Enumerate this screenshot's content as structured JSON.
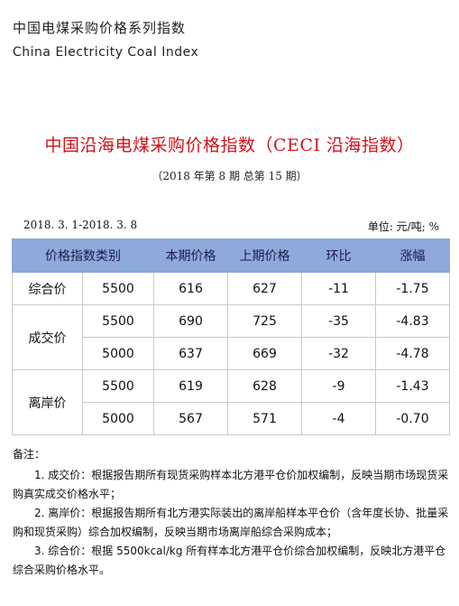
{
  "header": {
    "title_cn": "中国电煤采购价格系列指数",
    "title_en": "China Electricity Coal Index"
  },
  "report": {
    "title": "中国沿海电煤采购价格指数（CECI 沿海指数）",
    "subtitle": "（2018 年第 8 期   总第 15 期）",
    "date_range": "2018. 3. 1-2018. 3. 8",
    "unit": "单位: 元/吨; %"
  },
  "table": {
    "headers": [
      "价格指数类别",
      "本期价格",
      "上期价格",
      "环比",
      "涨幅"
    ],
    "groups": [
      {
        "category": "综合价",
        "rows": [
          {
            "spec": "5500",
            "current": "616",
            "previous": "627",
            "change": "-11",
            "pct": "-1.75"
          }
        ]
      },
      {
        "category": "成交价",
        "rows": [
          {
            "spec": "5500",
            "current": "690",
            "previous": "725",
            "change": "-35",
            "pct": "-4.83"
          },
          {
            "spec": "5000",
            "current": "637",
            "previous": "669",
            "change": "-32",
            "pct": "-4.78"
          }
        ]
      },
      {
        "category": "离岸价",
        "rows": [
          {
            "spec": "5500",
            "current": "619",
            "previous": "628",
            "change": "-9",
            "pct": "-1.43"
          },
          {
            "spec": "5000",
            "current": "567",
            "previous": "571",
            "change": "-4",
            "pct": "-0.70"
          }
        ]
      }
    ]
  },
  "notes": {
    "title": "备注：",
    "items": [
      "1. 成交价：根据报告期所有现货采购样本北方港平仓价加权编制，反映当期市场现货采购真实成交价格水平；",
      "2. 离岸价：根据报告期所有北方港实际装出的离岸船样本平仓价（含年度长协、批量采购和现货采购）综合加权编制，反映当期市场离岸船综合采购成本；",
      "3. 综合价：根据 5500kcal/kg 所有样本北方港平仓价综合加权编制，反映北方港平仓综合采购价格水平。"
    ]
  },
  "colors": {
    "title_red": "#d1121b",
    "header_blue": "#8ea9db",
    "negative_green": "#3c8a2e"
  }
}
